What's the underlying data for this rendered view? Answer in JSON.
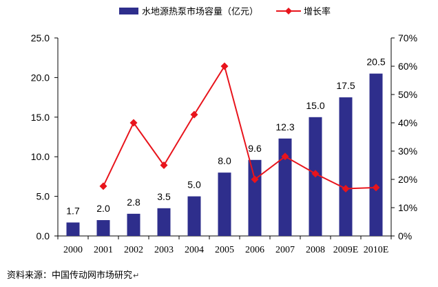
{
  "chart_data": {
    "type": "bar",
    "categories": [
      "2000",
      "2001",
      "2002",
      "2003",
      "2004",
      "2005",
      "2006",
      "2007",
      "2008",
      "2009E",
      "2010E"
    ],
    "series": [
      {
        "name": "水地源热泵市场容量（亿元）",
        "type": "bar",
        "axis": "left",
        "values": [
          1.7,
          2.0,
          2.8,
          3.5,
          5.0,
          8.0,
          9.6,
          12.3,
          15.0,
          17.5,
          20.5
        ],
        "labels": [
          "1.7",
          "2.0",
          "2.8",
          "3.5",
          "5.0",
          "8.0",
          "9.6",
          "12.3",
          "15.0",
          "17.5",
          "20.5"
        ],
        "color": "#2E2E8C"
      },
      {
        "name": "增长率",
        "type": "line",
        "axis": "right",
        "values": [
          null,
          17.6,
          40.0,
          25.0,
          42.9,
          60.0,
          20.0,
          28.1,
          22.0,
          16.7,
          17.1
        ],
        "color": "#E8141C"
      }
    ],
    "left_axis": {
      "range": [
        0,
        25
      ],
      "ticks": [
        0,
        5,
        10,
        15,
        20,
        25
      ],
      "tick_labels": [
        "0.0",
        "5.0",
        "10.0",
        "15.0",
        "20.0",
        "25.0"
      ]
    },
    "right_axis": {
      "range": [
        0,
        70
      ],
      "ticks": [
        0,
        10,
        20,
        30,
        40,
        50,
        60,
        70
      ],
      "tick_labels": [
        "0%",
        "10%",
        "20%",
        "30%",
        "40%",
        "50%",
        "60%",
        "70%"
      ]
    },
    "grid": false,
    "legend_position": "top"
  },
  "source_note": "资料来源：中国传动网市场研究",
  "source_mark": "↵"
}
